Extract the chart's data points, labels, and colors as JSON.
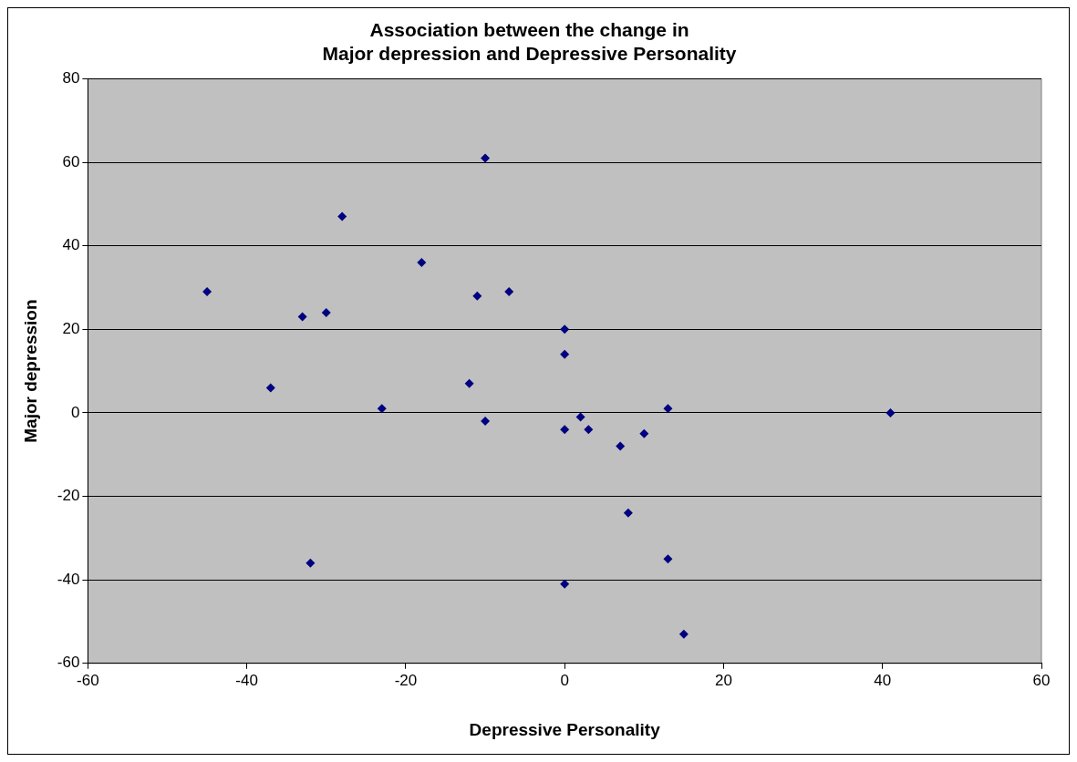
{
  "chart_data": {
    "type": "scatter",
    "title": "Association between the change in\nMajor depression and Depressive Personality",
    "xlabel": "Depressive Personality",
    "ylabel": "Major depression",
    "series": [
      {
        "color": "#000080",
        "x": [
          -45,
          -37,
          -33,
          -30,
          -28,
          -32,
          -23,
          -18,
          -12,
          -11,
          -10,
          -10,
          -7,
          0,
          0,
          0,
          0,
          2,
          3,
          7,
          8,
          10,
          13,
          13,
          15,
          41
        ],
        "values": [
          29,
          6,
          23,
          24,
          47,
          -36,
          1,
          36,
          7,
          28,
          61,
          -2,
          29,
          20,
          14,
          -4,
          -41,
          -1,
          -4,
          -8,
          -24,
          -5,
          1,
          -35,
          -53,
          0
        ]
      }
    ],
    "xlim": [
      -60,
      60
    ],
    "xticks": [
      -60,
      -40,
      -20,
      0,
      20,
      40,
      60
    ],
    "ylim": [
      -60,
      80
    ],
    "yticks": [
      -60,
      -40,
      -20,
      0,
      20,
      40,
      60,
      80
    ],
    "grid": "y",
    "legend": false,
    "marker": "diamond"
  }
}
